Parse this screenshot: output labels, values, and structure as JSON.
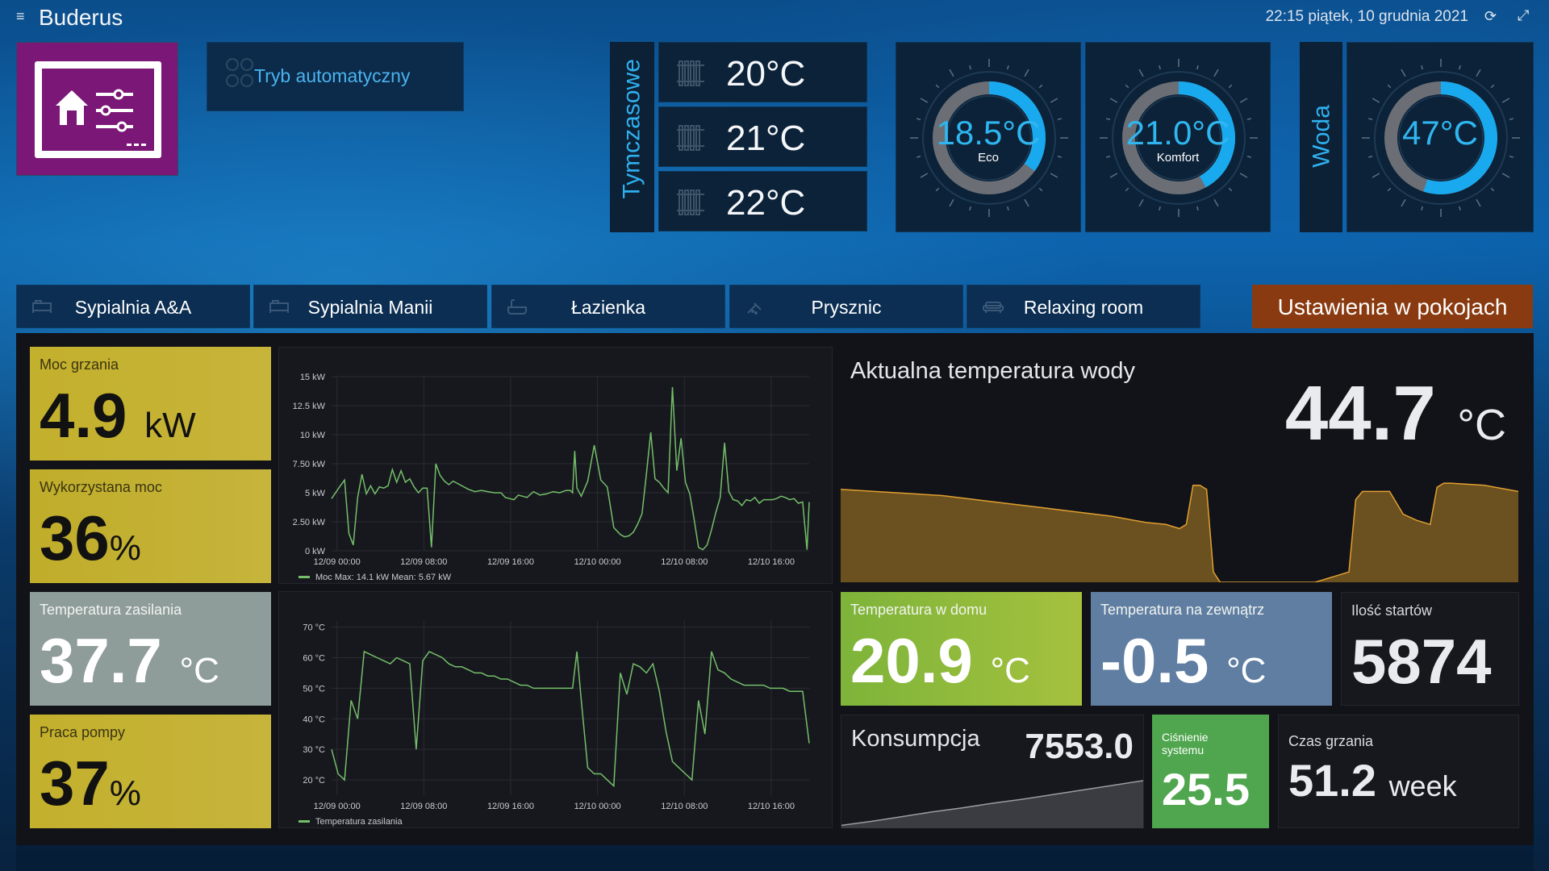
{
  "header": {
    "title": "Buderus",
    "datetime": "22:15 piątek, 10 grudnia 2021",
    "icons": [
      "menu-icon",
      "refresh-icon",
      "expand-icon"
    ]
  },
  "auto_mode": {
    "label": "Tryb automatyczny",
    "icon": "toggle-icon"
  },
  "presets": {
    "label": "Tymczasowe",
    "items": [
      {
        "value": "20°C",
        "icon": "radiator-icon"
      },
      {
        "value": "21°C",
        "icon": "radiator-icon"
      },
      {
        "value": "22°C",
        "icon": "radiator-icon"
      }
    ]
  },
  "gauges": {
    "eco": {
      "value": "18.5°C",
      "label": "Eco",
      "fill_fraction": 0.35
    },
    "komfort": {
      "value": "21.0°C",
      "label": "Komfort",
      "fill_fraction": 0.42
    },
    "water_label": "Woda",
    "water": {
      "value": "47°C",
      "fill_fraction": 0.55
    }
  },
  "rooms": {
    "tabs": [
      {
        "label": "Sypialnia A&A",
        "icon": "bed-icon"
      },
      {
        "label": "Sypialnia Manii",
        "icon": "bed-icon"
      },
      {
        "label": "Łazienka",
        "icon": "bathtub-icon"
      },
      {
        "label": "Prysznic",
        "icon": "shower-icon"
      },
      {
        "label": "Relaxing room",
        "icon": "sofa-icon"
      }
    ],
    "settings_button": "Ustawienia w pokojach"
  },
  "stats": {
    "moc": {
      "title": "Moc grzania",
      "value": "4.9",
      "unit": "kW"
    },
    "wykorzystana": {
      "title": "Wykorzystana moc",
      "value": "36",
      "unit": "%"
    },
    "temp_zasilania": {
      "title": "Temperatura zasilania",
      "value": "37.7",
      "unit": "°C"
    },
    "praca_pompy": {
      "title": "Praca pompy",
      "value": "37",
      "unit": "%"
    },
    "temp_dom": {
      "title": "Temperatura w domu",
      "value": "20.9",
      "unit": "°C"
    },
    "temp_zew": {
      "title": "Temperatura na zewnątrz",
      "value": "-0.5",
      "unit": "°C"
    },
    "starty": {
      "title": "Ilość startów",
      "value": "5874"
    },
    "konsumpcja": {
      "title": "Konsumpcja",
      "value": "7553.0"
    },
    "cisnienie": {
      "title": "Ciśnienie systemu",
      "value": "25.5"
    },
    "czas_grzania": {
      "title": "Czas grzania",
      "value": "51.2",
      "unit": "week"
    }
  },
  "water_temp": {
    "title": "Aktualna temperatura wody",
    "value": "44.7",
    "unit": "°C"
  },
  "colors": {
    "accent_blue": "#2fb0ee",
    "chart_green": "#73bf69",
    "water_fill": "#6b5020",
    "water_line": "#e0a030",
    "settings_orange": "#8a3a10",
    "logo_purple": "#7a1777"
  },
  "chart_data": [
    {
      "type": "line",
      "x_ticks": [
        "12/09 00:00",
        "12/09 08:00",
        "12/09 16:00",
        "12/10 00:00",
        "12/10 08:00",
        "12/10 16:00"
      ],
      "y_ticks": [
        "0 kW",
        "2.50 kW",
        "5 kW",
        "7.50 kW",
        "10 kW",
        "12.5 kW",
        "15 kW"
      ],
      "ylim": [
        0,
        15
      ],
      "xlim": [
        0,
        44
      ],
      "legend": "Moc  Max: 14.1 kW  Mean: 5.67 kW",
      "series": [
        {
          "name": "Moc",
          "x": [
            0,
            0.8,
            1.2,
            1.6,
            2,
            2.4,
            2.8,
            3.2,
            3.6,
            4,
            4.4,
            4.8,
            5.2,
            5.6,
            6,
            6.4,
            6.8,
            7.2,
            7.6,
            8,
            8.4,
            8.8,
            9.2,
            9.6,
            10,
            10.4,
            10.8,
            11.2,
            11.6,
            12,
            12.6,
            13.2,
            13.8,
            14.4,
            15,
            15.6,
            16,
            16.4,
            16.8,
            17.2,
            17.6,
            18,
            18.6,
            19.2,
            19.8,
            20.4,
            21,
            21.6,
            22,
            22.2,
            22.4,
            22.6,
            23,
            23.6,
            24.2,
            24.8,
            25.4,
            26,
            26.6,
            27,
            27.4,
            27.8,
            28.2,
            28.6,
            29,
            29.4,
            29.8,
            30.2,
            30.6,
            31,
            31.4,
            31.8,
            32.2,
            32.6,
            33,
            33.4,
            33.8,
            34.2,
            34.6,
            35,
            35.4,
            35.8,
            36.2,
            36.6,
            37,
            37.4,
            37.8,
            38.2,
            38.6,
            39,
            39.4,
            39.8,
            40.2,
            40.6,
            41,
            41.4,
            41.8,
            42.2,
            42.6,
            43,
            43.4,
            43.8,
            44
          ],
          "values": [
            4.5,
            5.6,
            6.1,
            1.5,
            0.5,
            4.6,
            6.6,
            4.9,
            5.6,
            4.9,
            5.5,
            5.4,
            5.6,
            7.0,
            5.9,
            6.9,
            5.9,
            6.2,
            5.5,
            5.0,
            5.4,
            5.4,
            0.3,
            7.5,
            6.5,
            6.0,
            5.7,
            6.0,
            5.8,
            5.6,
            5.3,
            5.1,
            5.2,
            5.1,
            5.0,
            5.0,
            4.6,
            4.5,
            4.4,
            4.8,
            4.7,
            4.6,
            5.1,
            4.8,
            4.9,
            5.1,
            5.0,
            5.2,
            5.2,
            5.0,
            8.6,
            5.4,
            4.7,
            6.0,
            9.1,
            6.1,
            5.5,
            2.0,
            1.4,
            1.2,
            1.3,
            1.6,
            2.3,
            3.2,
            6.6,
            10.2,
            6.2,
            5.9,
            5.4,
            5.0,
            14.1,
            6.9,
            9.7,
            5.9,
            4.9,
            2.7,
            0.3,
            0.1,
            0.5,
            1.8,
            3.3,
            4.6,
            9.3,
            5.1,
            4.4,
            4.3,
            3.9,
            4.4,
            4.3,
            4.6,
            4.1,
            4.4,
            4.4,
            4.4,
            4.5,
            4.7,
            4.6,
            4.4,
            4.5,
            4.1,
            4.2,
            0.1,
            4.2
          ]
        }
      ]
    },
    {
      "type": "line",
      "x_ticks": [
        "12/09 00:00",
        "12/09 08:00",
        "12/09 16:00",
        "12/10 00:00",
        "12/10 08:00",
        "12/10 16:00"
      ],
      "y_ticks": [
        "20 °C",
        "30 °C",
        "40 °C",
        "50 °C",
        "60 °C",
        "70 °C"
      ],
      "ylim": [
        15,
        72
      ],
      "xlim": [
        0,
        44
      ],
      "legend": "Temperatura zasilania",
      "series": [
        {
          "name": "Temperatura zasilania",
          "x": [
            0,
            0.6,
            1.2,
            1.8,
            2.4,
            3,
            3.6,
            4.2,
            4.8,
            5.4,
            6,
            6.6,
            7.2,
            7.8,
            8.4,
            9,
            9.6,
            10.2,
            10.8,
            11.4,
            12,
            12.6,
            13.2,
            13.8,
            14.4,
            15,
            15.6,
            16.2,
            16.8,
            17.4,
            18,
            18.6,
            19.2,
            19.8,
            20.4,
            21,
            21.6,
            22.2,
            22.6,
            23,
            23.6,
            24.2,
            24.8,
            25.4,
            26,
            26.6,
            27.2,
            27.8,
            28.4,
            29,
            29.6,
            30.2,
            30.8,
            31.4,
            32,
            32.6,
            33.2,
            33.8,
            34.4,
            35,
            35.6,
            36.2,
            36.8,
            37.4,
            38,
            38.6,
            39.2,
            39.8,
            40.4,
            41,
            41.6,
            42.2,
            42.8,
            43.4,
            44
          ],
          "values": [
            30,
            22,
            20,
            46,
            40,
            62,
            61,
            60,
            59,
            58,
            60,
            59,
            58,
            30,
            59,
            62,
            61,
            60,
            58,
            57,
            57,
            56,
            55,
            55,
            54,
            54,
            53,
            53,
            52,
            51,
            51,
            50,
            50,
            50,
            50,
            50,
            50,
            50,
            62,
            46,
            24,
            22,
            22,
            20,
            18,
            55,
            48,
            58,
            57,
            55,
            58,
            49,
            36,
            26,
            24,
            22,
            20,
            46,
            35,
            62,
            56,
            55,
            53,
            52,
            51,
            51,
            51,
            51,
            50,
            50,
            50,
            49,
            49,
            49,
            32
          ]
        }
      ]
    },
    {
      "type": "area",
      "legend": "",
      "xlim": [
        0,
        100
      ],
      "ylim": [
        0,
        50
      ],
      "series": [
        {
          "name": "",
          "x": [
            0,
            5,
            10,
            15,
            20,
            25,
            30,
            35,
            40,
            45,
            48,
            49,
            50,
            51,
            52,
            53,
            54,
            55,
            56,
            57,
            58,
            60,
            64,
            70,
            75,
            76,
            77,
            78,
            79,
            80,
            81,
            83,
            85,
            87,
            88,
            89,
            90,
            95,
            100
          ],
          "values": [
            45,
            44,
            43,
            42,
            40,
            38,
            36,
            34,
            32,
            29,
            28,
            27,
            26,
            28,
            47,
            47,
            45,
            5,
            0,
            0,
            0,
            0,
            0,
            0,
            5,
            40,
            44,
            44,
            44,
            44,
            44,
            33,
            30,
            28,
            46,
            48,
            48,
            47,
            44
          ]
        }
      ]
    },
    {
      "type": "area",
      "legend": "",
      "xlim": [
        0,
        100
      ],
      "ylim": [
        0,
        10
      ],
      "series": [
        {
          "name": "",
          "x": [
            0,
            10,
            20,
            30,
            40,
            50,
            60,
            70,
            80,
            90,
            100
          ],
          "values": [
            0.5,
            1.2,
            2.0,
            2.8,
            3.5,
            4.3,
            5.0,
            5.8,
            6.6,
            7.4,
            8.2
          ]
        }
      ]
    }
  ]
}
